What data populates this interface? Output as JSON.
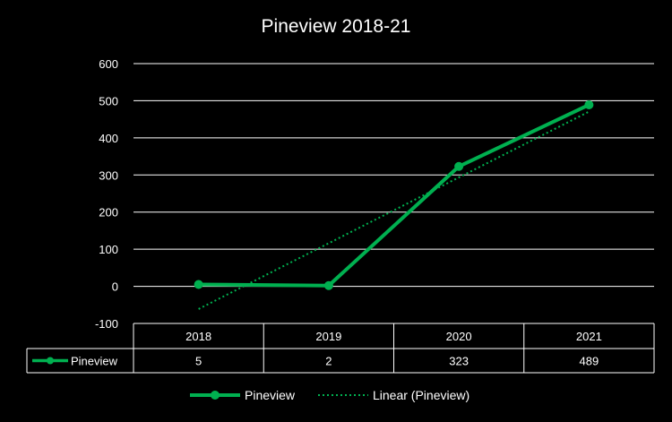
{
  "chart_data": {
    "type": "line",
    "title": "Pineview 2018-21",
    "categories": [
      "2018",
      "2019",
      "2020",
      "2021"
    ],
    "series": [
      {
        "name": "Pineview",
        "values": [
          5,
          2,
          323,
          489
        ]
      }
    ],
    "trendline": {
      "name": "Linear (Pineview)",
      "type": "linear"
    },
    "ylim": [
      -100,
      600
    ],
    "yticks": [
      "-100",
      "0",
      "100",
      "200",
      "300",
      "400",
      "500",
      "600"
    ],
    "grid": true,
    "data_table": true,
    "legend_position": "bottom",
    "colors": {
      "background": "#000000",
      "text": "#ffffff",
      "gridline": "#ffffff",
      "series": "#00b050"
    }
  }
}
